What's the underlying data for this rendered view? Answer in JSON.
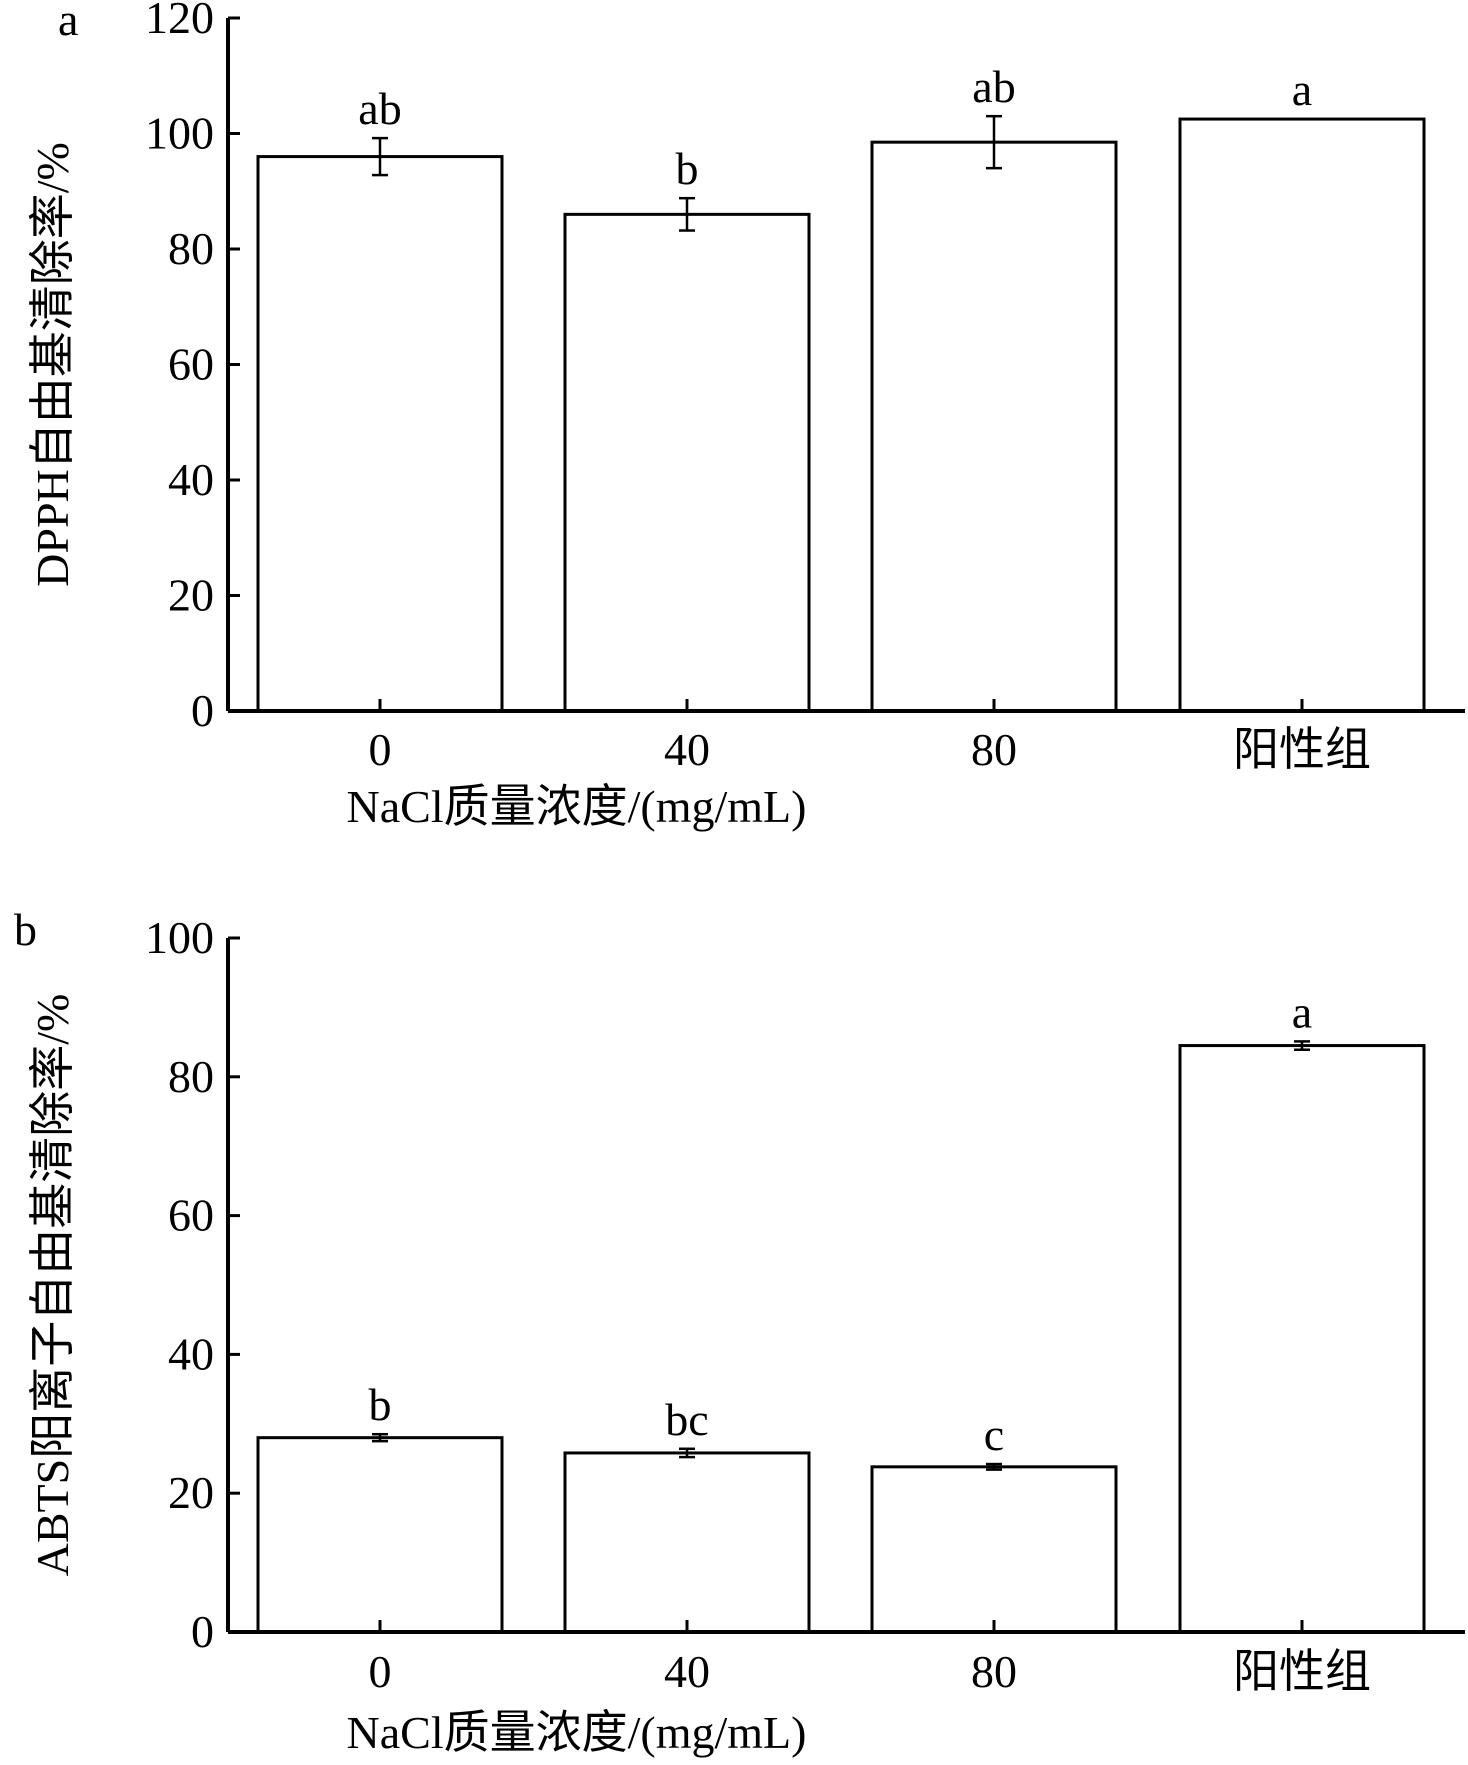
{
  "chart_data": [
    {
      "type": "bar",
      "panel_label": "a",
      "categories": [
        "0",
        "40",
        "80",
        "阳性组"
      ],
      "values": [
        96,
        86,
        98.5,
        102.5
      ],
      "errors": [
        3.2,
        2.8,
        4.5,
        0
      ],
      "significance": [
        "ab",
        "b",
        "ab",
        "a"
      ],
      "xlabel": "NaCl质量浓度/(mg/mL)",
      "ylabel": "DPPH自由基清除率/%",
      "ylim": [
        0,
        120
      ],
      "yticks": [
        0,
        20,
        40,
        60,
        80,
        100,
        120
      ],
      "grid": false
    },
    {
      "type": "bar",
      "panel_label": "b",
      "categories": [
        "0",
        "40",
        "80",
        "阳性组"
      ],
      "values": [
        28,
        25.8,
        23.8,
        84.5
      ],
      "errors": [
        0.5,
        0.6,
        0.4,
        0.6
      ],
      "significance": [
        "b",
        "bc",
        "c",
        "a"
      ],
      "xlabel": "NaCl质量浓度/(mg/mL)",
      "ylabel": "ABTS阳离子自由基清除率/%",
      "ylim": [
        0,
        100
      ],
      "yticks": [
        0,
        20,
        40,
        60,
        80,
        100
      ],
      "grid": false
    }
  ]
}
